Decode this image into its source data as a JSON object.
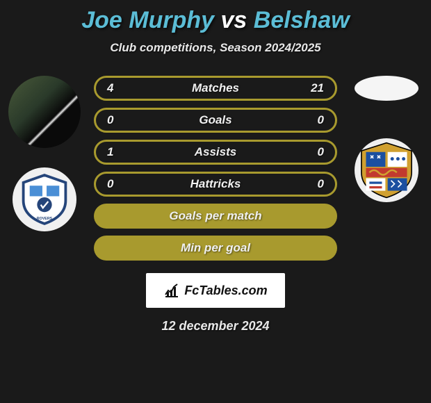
{
  "title": {
    "player1": "Joe Murphy",
    "vs": "vs",
    "player2": "Belshaw",
    "player1_color": "#5bbdd6",
    "vs_color": "#ffffff",
    "player2_color": "#5bbdd6"
  },
  "subtitle": "Club competitions, Season 2024/2025",
  "stats": {
    "bar_outline_color": "#a89a2e",
    "bar_bg_color": "#1a1a1a",
    "rows": [
      {
        "left": "4",
        "label": "Matches",
        "right": "21"
      },
      {
        "left": "0",
        "label": "Goals",
        "right": "0"
      },
      {
        "left": "1",
        "label": "Assists",
        "right": "0"
      },
      {
        "left": "0",
        "label": "Hattricks",
        "right": "0"
      }
    ],
    "full_rows": [
      {
        "label": "Goals per match"
      },
      {
        "label": "Min per goal"
      }
    ]
  },
  "logo": {
    "text": "FcTables.com"
  },
  "date": "12 december 2024",
  "crests": {
    "left": {
      "bg": "#f7f7f7",
      "shield_border": "#25457a",
      "main": "#25457a",
      "accent1": "#4a8fd6",
      "accent2": "#ffffff"
    },
    "right": {
      "bg": "#f7f7f7",
      "blue": "#1b4fa0",
      "red": "#c23a2e",
      "gold": "#d0a030",
      "white": "#ffffff",
      "black": "#000000"
    }
  },
  "interactable": false
}
